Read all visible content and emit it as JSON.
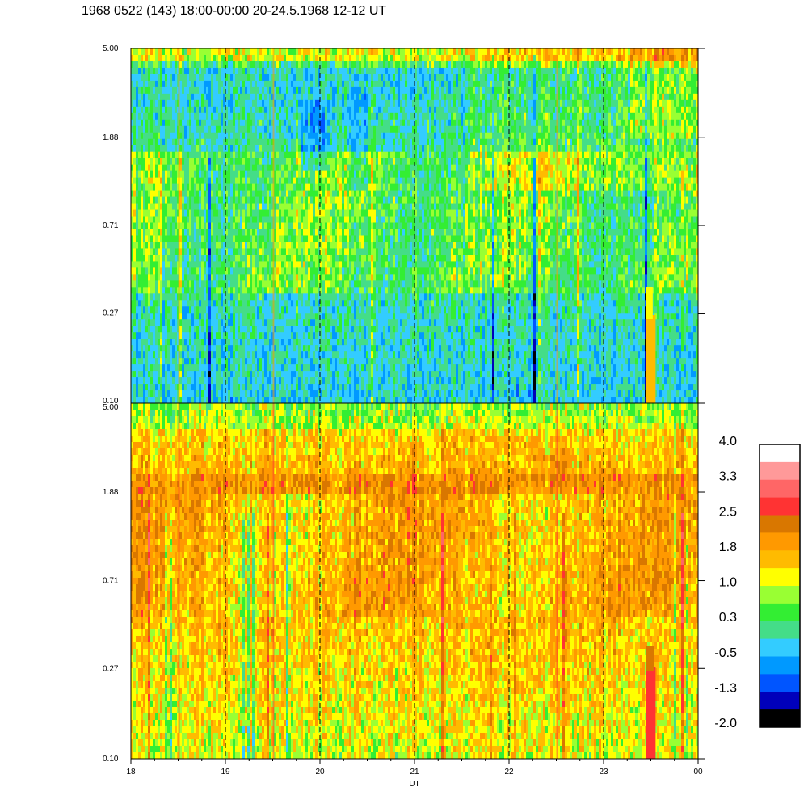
{
  "title": "1968 0522 (143) 18:00-00:00 20-24.5.1968  12-12 UT",
  "chart_data": [
    {
      "type": "heatmap",
      "panel": "top",
      "x_unit_label": "",
      "x_ticks": [
        "18",
        "19",
        "20",
        "21",
        "22",
        "23",
        "00"
      ],
      "y_ticks": [
        "5.00",
        "1.88",
        "0.71",
        "0.27",
        "0.10"
      ],
      "y_scale": "log",
      "ylim": [
        0.1,
        5.0
      ],
      "dominant_levels": [
        -0.5,
        0.3,
        1.0
      ],
      "note_levels": "mostly green/cyan with blue streaks near 1.88; orange feature near 23.5 at low y"
    },
    {
      "type": "heatmap",
      "panel": "bottom",
      "x_label": "UT",
      "x_ticks": [
        "18",
        "19",
        "20",
        "21",
        "22",
        "23",
        "00"
      ],
      "y_ticks": [
        "5.00",
        "1.88",
        "0.71",
        "0.27",
        "0.10"
      ],
      "y_scale": "log",
      "ylim": [
        0.1,
        5.0
      ],
      "dominant_levels": [
        1.0,
        1.5,
        1.8,
        2.2
      ],
      "note_levels": "mostly yellow/orange; red feature near 23.5 at low y"
    }
  ],
  "colorbar": {
    "tick_labels": [
      "4.0",
      "3.3",
      "2.5",
      "1.8",
      "1.0",
      "0.3",
      "-0.5",
      "-1.3",
      "-2.0"
    ],
    "colors": [
      "#ffffff",
      "#ff9999",
      "#ff6666",
      "#ff3333",
      "#d97700",
      "#ff9900",
      "#ffbb00",
      "#ffff00",
      "#99ff33",
      "#33ee33",
      "#44dd88",
      "#33ccff",
      "#0099ff",
      "#0055ff",
      "#0000bb",
      "#000000"
    ]
  }
}
